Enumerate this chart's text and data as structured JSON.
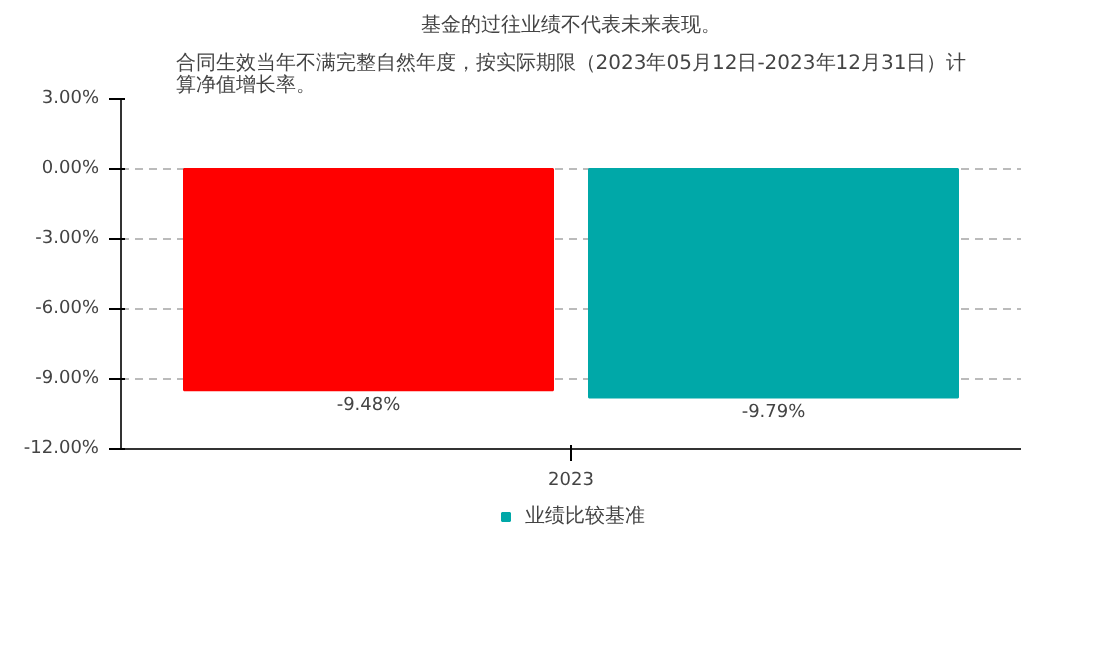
{
  "chart_data": {
    "type": "bar",
    "title": "基金的过往业绩不代表未来表现。",
    "subtitle": "合同生效当年不满完整自然年度，按实际期限（2023年05月12日-2023年12月31日）计算净值增长率。",
    "categories": [
      "2023"
    ],
    "series": [
      {
        "color": "#ff0000",
        "values": [
          -9.48
        ],
        "value_labels": [
          "-9.48%"
        ]
      },
      {
        "name": "业绩比较基准",
        "color": "#00a8a8",
        "values": [
          -9.79
        ],
        "value_labels": [
          "-9.79%"
        ]
      }
    ],
    "ylim": [
      -12,
      3
    ],
    "yticks": [
      {
        "value": 3,
        "label": "3.00%"
      },
      {
        "value": 0,
        "label": "0.00%"
      },
      {
        "value": -3,
        "label": "-3.00%"
      },
      {
        "value": -6,
        "label": "-6.00%"
      },
      {
        "value": -9,
        "label": "-9.00%"
      },
      {
        "value": -12,
        "label": "-12.00%"
      }
    ],
    "grid": "y",
    "legend": "bottom"
  }
}
